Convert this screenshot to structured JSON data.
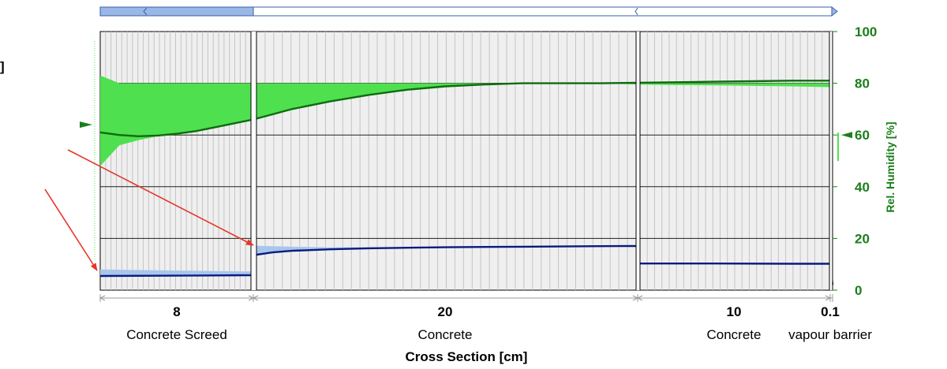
{
  "chart_data": {
    "type": "line",
    "title": "",
    "xlabel": "Cross Section [cm]",
    "ylabel_right": "Rel. Humidity [%]",
    "left_axis_fragment": "]",
    "ylim_right": [
      0,
      100
    ],
    "yticks_right": [
      "0",
      "20",
      "40",
      "60",
      "80",
      "100"
    ],
    "grid": true,
    "layers": [
      {
        "thickness": "8",
        "name": "Concrete Screed"
      },
      {
        "thickness": "20",
        "name": "Concrete"
      },
      {
        "thickness": "10",
        "name": "Concrete"
      },
      {
        "thickness": "0.1",
        "name": "vapour barrier"
      }
    ],
    "series": [
      {
        "color": "#0e6b0e",
        "fill_color": "#4fe04f",
        "x_cm": [
          0,
          1,
          2,
          3,
          4,
          5,
          6,
          7,
          8,
          9,
          10,
          12,
          14,
          16,
          18,
          20,
          22,
          24,
          26,
          28,
          30,
          32,
          34,
          36,
          38,
          38.1
        ],
        "values": [
          61,
          60,
          59.5,
          59.8,
          60.5,
          61.5,
          63,
          64.5,
          66,
          68,
          70,
          73,
          75.5,
          77.5,
          78.8,
          79.5,
          80,
          80,
          80,
          80.2,
          80.4,
          80.6,
          80.8,
          81,
          81,
          81
        ],
        "range_upper": [
          83,
          80,
          80,
          80,
          80,
          80,
          80,
          80,
          80,
          80,
          80,
          80,
          80,
          80,
          80,
          80,
          80,
          80,
          80,
          80,
          80,
          80,
          80,
          80,
          80,
          80
        ],
        "range_lower": [
          48,
          56,
          58,
          59.5,
          60.5,
          61.5,
          63,
          64.5,
          66,
          68,
          70,
          73,
          75.5,
          77.5,
          78.8,
          79.5,
          80,
          80,
          80,
          79.5,
          79.3,
          79.2,
          79,
          78.8,
          78.5,
          78
        ]
      },
      {
        "color": "#0a1a80",
        "fill_color": "#a8c6ec",
        "x_cm": [
          0,
          4,
          8,
          8,
          9,
          10,
          12,
          14,
          16,
          18,
          20,
          22,
          24,
          26,
          28,
          28,
          32,
          36,
          38,
          38.1
        ],
        "values": [
          5.5,
          5.6,
          5.8,
          13.5,
          14.6,
          15.2,
          15.8,
          16.2,
          16.4,
          16.6,
          16.7,
          16.8,
          16.9,
          17,
          17.1,
          10.3,
          10.3,
          10.2,
          10.2,
          2
        ],
        "range_upper": [
          8,
          7.6,
          7.2,
          17.2,
          17,
          16.8,
          16.6,
          16.6,
          16.6,
          16.7,
          16.8,
          16.9,
          17,
          17,
          17.1,
          10.3,
          10.3,
          10.2,
          10.2,
          2
        ],
        "range_lower": [
          5.5,
          5.6,
          5.8,
          13.5,
          14.6,
          15.2,
          15.8,
          16.2,
          16.4,
          16.6,
          16.7,
          16.8,
          16.9,
          17,
          17.1,
          10.3,
          10.3,
          10.2,
          10.2,
          2
        ]
      }
    ],
    "markers": {
      "left_rh": 64,
      "right_rh": 60
    }
  },
  "colors": {
    "grid_bg": "#efefef",
    "rh_green": "#1a7f1a",
    "arrow_red": "#e8352a"
  }
}
